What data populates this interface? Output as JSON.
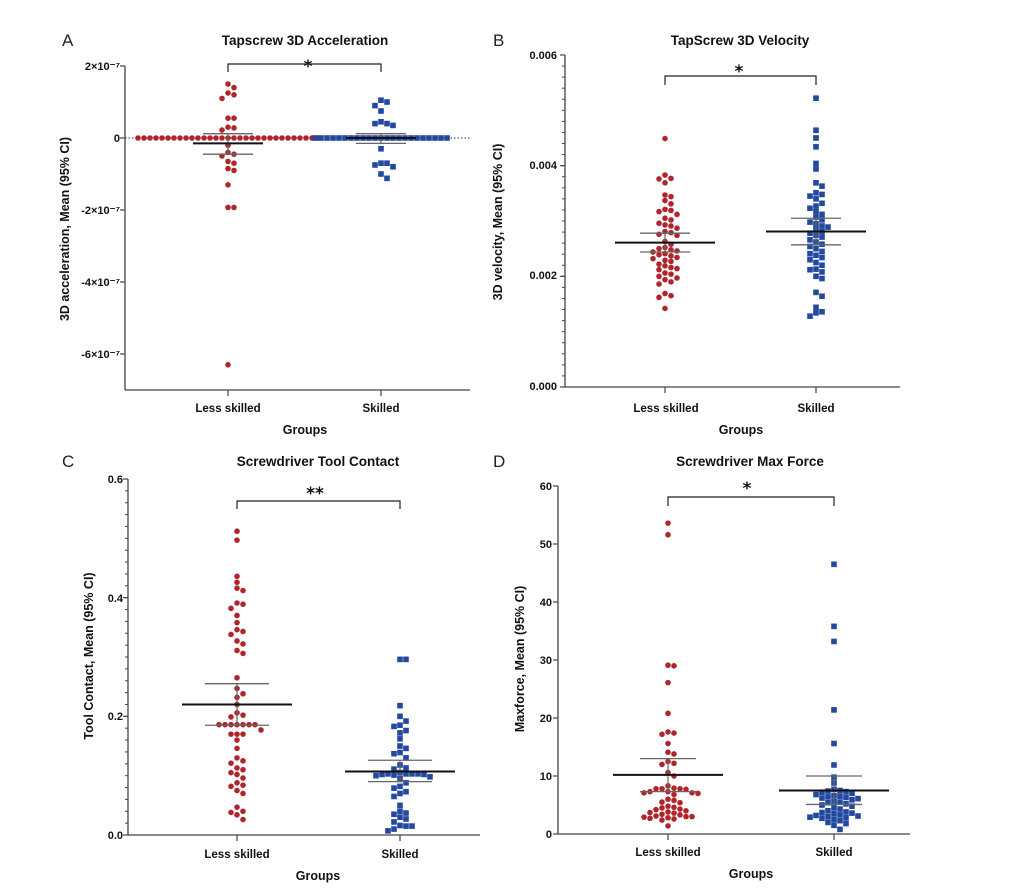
{
  "colors": {
    "less_skilled": "#b0252b",
    "skilled": "#2348a0",
    "axis": "#444444",
    "mean": "#111111",
    "ci": "#666666"
  },
  "chart_data": [
    {
      "panel": "A",
      "type": "scatter",
      "title": "Tapscrew 3D Acceleration",
      "xlabel": "Groups",
      "ylabel": "3D acceleration, Mean (95% CI)",
      "categories": [
        "Less skilled",
        "Skilled"
      ],
      "ylim": [
        -7e-07,
        2e-07
      ],
      "yticks": [
        2e-07,
        0,
        -2e-07,
        -4e-07,
        -6e-07
      ],
      "ytick_labels": [
        "2×10⁻⁷",
        "0",
        "-2×10⁻⁷",
        "-4×10⁻⁷",
        "-6×10⁻⁷"
      ],
      "minor_ticks": false,
      "zero_line": true,
      "significance": "*",
      "series": [
        {
          "name": "Less skilled",
          "marker": "circle",
          "mean": -1.5e-08,
          "ci": [
            -4.5e-08,
            1.2e-08
          ],
          "values": [
            1.5e-07,
            1.4e-07,
            1.25e-07,
            1.2e-07,
            1.1e-07,
            5.5e-08,
            5.5e-08,
            3e-08,
            2.8e-08,
            2.2e-08,
            0,
            0,
            0,
            0,
            0,
            0,
            0,
            0,
            0,
            0,
            0,
            0,
            0,
            0,
            0,
            0,
            0,
            0,
            0,
            0,
            0,
            0,
            0,
            0,
            0,
            0,
            0,
            0,
            0,
            0,
            0,
            -2e-08,
            -4e-08,
            -4.5e-08,
            -5e-08,
            -6.5e-08,
            -7e-08,
            -8.5e-08,
            -9e-08,
            -1.3e-07,
            -1.93e-07,
            -1.93e-07,
            -6.3e-07
          ]
        },
        {
          "name": "Skilled",
          "marker": "square",
          "mean": 0,
          "ci": [
            -1.5e-08,
            1.2e-08
          ],
          "values": [
            1.05e-07,
            1e-07,
            9e-08,
            7.5e-08,
            4.5e-08,
            4e-08,
            3.5e-08,
            4e-08,
            0,
            0,
            0,
            0,
            0,
            0,
            0,
            0,
            0,
            0,
            0,
            0,
            0,
            0,
            0,
            0,
            0,
            0,
            0,
            0,
            0,
            0,
            0,
            -3e-08,
            -7e-08,
            -7e-08,
            -7.5e-08,
            -8e-08,
            -1e-07,
            -1.12e-07
          ]
        }
      ]
    },
    {
      "panel": "B",
      "type": "scatter",
      "title": "TapScrew 3D Velocity",
      "xlabel": "Groups",
      "ylabel": "3D velocity, Mean (95% CI)",
      "categories": [
        "Less skilled",
        "Skilled"
      ],
      "ylim": [
        0,
        0.006
      ],
      "yticks": [
        0,
        0.002,
        0.004,
        0.006
      ],
      "ytick_labels": [
        "0.000",
        "0.002",
        "0.004",
        "0.006"
      ],
      "minor_ticks": 0.0002,
      "zero_line": false,
      "significance": "*",
      "series": [
        {
          "name": "Less skilled",
          "marker": "circle",
          "mean": 0.00261,
          "ci": [
            0.00244,
            0.00278
          ],
          "values": [
            0.00449,
            0.00383,
            0.00377,
            0.00376,
            0.00369,
            0.00347,
            0.00344,
            0.00337,
            0.00331,
            0.00321,
            0.00319,
            0.00317,
            0.00312,
            0.00305,
            0.00302,
            0.00296,
            0.00293,
            0.00291,
            0.00287,
            0.00281,
            0.00279,
            0.00276,
            0.00274,
            0.00263,
            0.00258,
            0.00252,
            0.0025,
            0.00248,
            0.00246,
            0.00244,
            0.00241,
            0.00239,
            0.00237,
            0.00234,
            0.00232,
            0.00229,
            0.00227,
            0.00222,
            0.00219,
            0.00216,
            0.00214,
            0.00212,
            0.00206,
            0.00204,
            0.002,
            0.00197,
            0.00194,
            0.0019,
            0.00186,
            0.00169,
            0.00165,
            0.00162,
            0.00142
          ]
        },
        {
          "name": "Skilled",
          "marker": "square",
          "mean": 0.00281,
          "ci": [
            0.00257,
            0.00305
          ],
          "values": [
            0.00522,
            0.00464,
            0.0045,
            0.00434,
            0.00404,
            0.00394,
            0.00369,
            0.00363,
            0.00351,
            0.00348,
            0.00345,
            0.0034,
            0.00332,
            0.00327,
            0.00323,
            0.00317,
            0.00312,
            0.00307,
            0.00302,
            0.00298,
            0.00295,
            0.00291,
            0.00289,
            0.00285,
            0.00281,
            0.00278,
            0.00274,
            0.00271,
            0.00266,
            0.00262,
            0.00258,
            0.00254,
            0.0025,
            0.00245,
            0.00241,
            0.00238,
            0.00234,
            0.0023,
            0.00225,
            0.0022,
            0.00213,
            0.00212,
            0.00208,
            0.002,
            0.00196,
            0.00171,
            0.00164,
            0.00144,
            0.00136,
            0.00134,
            0.00128
          ]
        }
      ]
    },
    {
      "panel": "C",
      "type": "scatter",
      "title": "Screwdriver Tool Contact",
      "xlabel": "Groups",
      "ylabel": "Tool Contact, Mean (95% CI)",
      "categories": [
        "Less skilled",
        "Skilled"
      ],
      "ylim": [
        0,
        0.6
      ],
      "yticks": [
        0,
        0.2,
        0.4,
        0.6
      ],
      "ytick_labels": [
        "0.0",
        "0.2",
        "0.4",
        "0.6"
      ],
      "minor_ticks": 0.02,
      "zero_line": false,
      "significance": "**",
      "series": [
        {
          "name": "Less skilled",
          "marker": "circle",
          "mean": 0.22,
          "ci": [
            0.185,
            0.255
          ],
          "values": [
            0.512,
            0.497,
            0.436,
            0.426,
            0.416,
            0.412,
            0.391,
            0.389,
            0.382,
            0.37,
            0.358,
            0.346,
            0.343,
            0.338,
            0.327,
            0.322,
            0.311,
            0.306,
            0.265,
            0.247,
            0.238,
            0.232,
            0.22,
            0.206,
            0.202,
            0.199,
            0.186,
            0.186,
            0.186,
            0.186,
            0.186,
            0.186,
            0.186,
            0.177,
            0.17,
            0.17,
            0.17,
            0.16,
            0.146,
            0.13,
            0.125,
            0.121,
            0.113,
            0.11,
            0.105,
            0.102,
            0.096,
            0.088,
            0.084,
            0.082,
            0.075,
            0.07,
            0.047,
            0.04,
            0.038,
            0.034,
            0.026
          ]
        },
        {
          "name": "Skilled",
          "marker": "square",
          "mean": 0.107,
          "ci": [
            0.09,
            0.126
          ],
          "values": [
            0.296,
            0.296,
            0.218,
            0.2,
            0.192,
            0.185,
            0.183,
            0.176,
            0.172,
            0.162,
            0.15,
            0.146,
            0.139,
            0.137,
            0.13,
            0.118,
            0.113,
            0.111,
            0.105,
            0.103,
            0.103,
            0.103,
            0.103,
            0.102,
            0.102,
            0.101,
            0.1,
            0.098,
            0.095,
            0.088,
            0.082,
            0.079,
            0.073,
            0.07,
            0.065,
            0.05,
            0.04,
            0.037,
            0.035,
            0.03,
            0.027,
            0.022,
            0.016,
            0.015,
            0.015,
            0.01,
            0.007
          ]
        }
      ]
    },
    {
      "panel": "D",
      "type": "scatter",
      "title": "Screwdriver Max Force",
      "xlabel": "Groups",
      "ylabel": "Maxforce, Mean (95% CI)",
      "categories": [
        "Less skilled",
        "Skilled"
      ],
      "ylim": [
        0,
        60
      ],
      "yticks": [
        0,
        10,
        20,
        30,
        40,
        50,
        60
      ],
      "ytick_labels": [
        "0",
        "10",
        "20",
        "30",
        "40",
        "50",
        "60"
      ],
      "minor_ticks": false,
      "zero_line": false,
      "significance": "*",
      "series": [
        {
          "name": "Less skilled",
          "marker": "circle",
          "mean": 10.2,
          "ci": [
            7.3,
            13.0
          ],
          "values": [
            53.6,
            51.6,
            29.1,
            29.0,
            26.1,
            20.8,
            17.6,
            17.4,
            17.2,
            15.6,
            14.1,
            13.8,
            12.5,
            12.2,
            12.0,
            10.6,
            10.0,
            8.3,
            7.9,
            7.8,
            7.8,
            7.8,
            7.7,
            7.3,
            7.3,
            7.1,
            7.1,
            7.0,
            6.8,
            6.0,
            5.8,
            5.5,
            5.4,
            4.8,
            4.6,
            4.5,
            4.3,
            4.2,
            4.0,
            3.8,
            3.7,
            3.6,
            3.4,
            3.3,
            3.1,
            3.0,
            3.0,
            2.9,
            2.8,
            2.7,
            2.6,
            2.4,
            1.4
          ]
        },
        {
          "name": "Skilled",
          "marker": "square",
          "mean": 7.5,
          "ci": [
            5.1,
            10.0
          ],
          "values": [
            46.5,
            35.8,
            33.2,
            21.4,
            15.6,
            11.9,
            9.8,
            8.8,
            7.7,
            7.5,
            7.4,
            7.3,
            7.2,
            7.0,
            6.8,
            6.6,
            6.5,
            6.4,
            6.3,
            6.2,
            6.1,
            5.9,
            5.6,
            5.5,
            5.4,
            5.2,
            5.0,
            4.8,
            4.5,
            4.3,
            4.0,
            3.8,
            3.7,
            3.6,
            3.5,
            3.3,
            3.2,
            3.1,
            3.0,
            2.9,
            2.8,
            2.7,
            2.5,
            2.3,
            2.0,
            1.8,
            1.5,
            0.8
          ]
        }
      ]
    }
  ]
}
